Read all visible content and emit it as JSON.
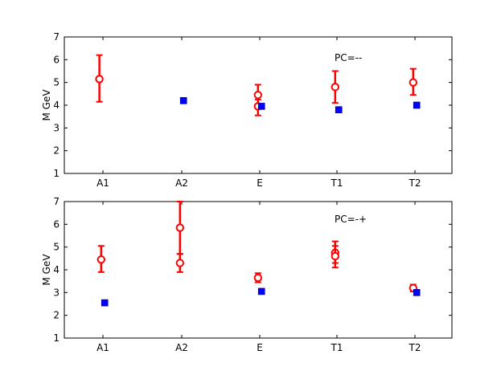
{
  "chart_data": [
    {
      "type": "scatter",
      "annotation": "PC=--",
      "ylabel": "M GeV",
      "xlabel": "",
      "categories": [
        "A1",
        "A2",
        "E",
        "T1",
        "T2"
      ],
      "yticks": [
        "1",
        "2",
        "3",
        "4",
        "5",
        "6",
        "7"
      ],
      "ylim": [
        1,
        7
      ],
      "grid": false,
      "series": [
        {
          "marker": "open-circle-errorbar",
          "color": "#ff0000",
          "points": [
            {
              "cat": "A1",
              "offset": -0.1,
              "y": 5.15,
              "ylo": 4.15,
              "yhi": 6.2
            },
            {
              "cat": "E",
              "offset": -0.05,
              "y": 4.45,
              "ylo": 4.0,
              "yhi": 4.9
            },
            {
              "cat": "E",
              "offset": -0.05,
              "y": 3.95,
              "ylo": 3.55,
              "yhi": 4.25
            },
            {
              "cat": "T1",
              "offset": -0.05,
              "y": 4.8,
              "ylo": 4.1,
              "yhi": 5.5
            },
            {
              "cat": "T2",
              "offset": -0.05,
              "y": 5.0,
              "ylo": 4.45,
              "yhi": 5.6
            }
          ]
        },
        {
          "marker": "filled-square",
          "color": "#0000ff",
          "points": [
            {
              "cat": "A2",
              "offset": 0.05,
              "y": 4.2
            },
            {
              "cat": "E",
              "offset": 0.05,
              "y": 3.95
            },
            {
              "cat": "T1",
              "offset": 0.05,
              "y": 3.8
            },
            {
              "cat": "T2",
              "offset": 0.05,
              "y": 4.0
            }
          ]
        }
      ]
    },
    {
      "type": "scatter",
      "annotation": "PC=-+",
      "ylabel": "M GeV",
      "xlabel": "",
      "categories": [
        "A1",
        "A2",
        "E",
        "T1",
        "T2"
      ],
      "yticks": [
        "1",
        "2",
        "3",
        "4",
        "5",
        "6",
        "7"
      ],
      "ylim": [
        1,
        7
      ],
      "grid": false,
      "series": [
        {
          "marker": "open-circle-errorbar",
          "color": "#ff0000",
          "points": [
            {
              "cat": "A1",
              "offset": -0.05,
              "y": 4.45,
              "ylo": 3.9,
              "yhi": 5.05
            },
            {
              "cat": "A2",
              "offset": -0.05,
              "y": 5.85,
              "ylo": 4.7,
              "yhi": 7.0
            },
            {
              "cat": "A2",
              "offset": -0.05,
              "y": 4.3,
              "ylo": 3.9,
              "yhi": 4.7
            },
            {
              "cat": "E",
              "offset": -0.05,
              "y": 3.65,
              "ylo": 3.45,
              "yhi": 3.85
            },
            {
              "cat": "T1",
              "offset": -0.05,
              "y": 4.75,
              "ylo": 4.3,
              "yhi": 5.25
            },
            {
              "cat": "T1",
              "offset": -0.05,
              "y": 4.6,
              "ylo": 4.1,
              "yhi": 5.05
            },
            {
              "cat": "T2",
              "offset": -0.05,
              "y": 3.2,
              "ylo": 3.05,
              "yhi": 3.35
            }
          ]
        },
        {
          "marker": "filled-square",
          "color": "#0000ff",
          "points": [
            {
              "cat": "A1",
              "offset": 0.05,
              "y": 2.55
            },
            {
              "cat": "E",
              "offset": 0.05,
              "y": 3.05
            },
            {
              "cat": "T2",
              "offset": 0.05,
              "y": 3.0
            }
          ]
        }
      ]
    }
  ]
}
